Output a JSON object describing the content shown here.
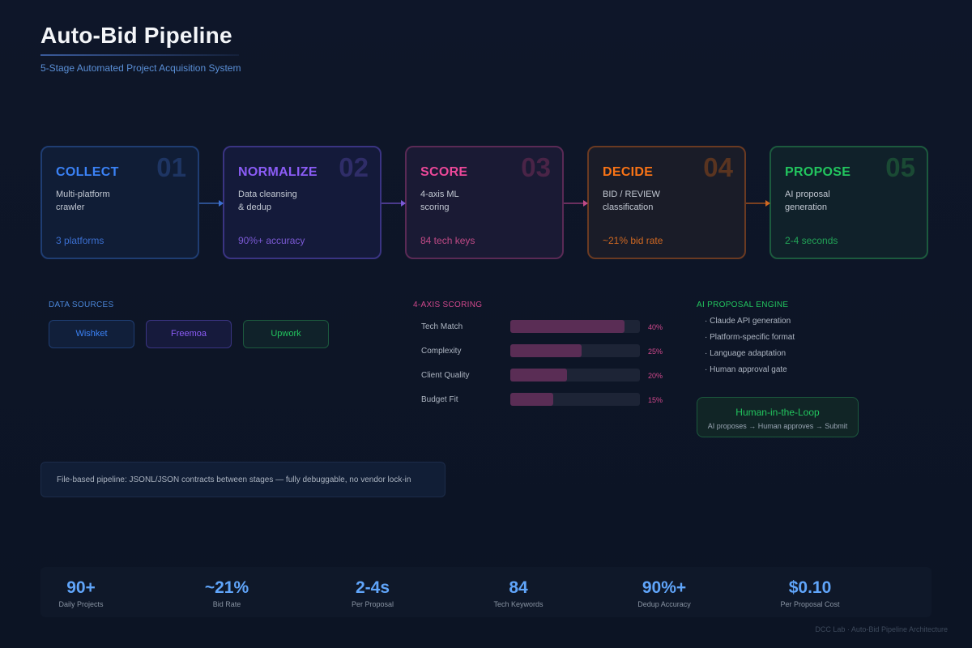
{
  "header": {
    "title": "Auto-Bid Pipeline",
    "subtitle": "5-Stage Automated Project Acquisition System"
  },
  "stages": [
    {
      "num": "01",
      "name": "COLLECT",
      "desc_line1": "Multi-platform",
      "desc_line2": "crawler",
      "metric": "3 platforms",
      "color": "#3b82f6"
    },
    {
      "num": "02",
      "name": "NORMALIZE",
      "desc_line1": "Data cleansing",
      "desc_line2": "& dedup",
      "metric": "90%+ accuracy",
      "color": "#8b5cf6"
    },
    {
      "num": "03",
      "name": "SCORE",
      "desc_line1": "4-axis ML",
      "desc_line2": "scoring",
      "metric": "84 tech keys",
      "color": "#ec4899"
    },
    {
      "num": "04",
      "name": "DECIDE",
      "desc_line1": "BID / REVIEW",
      "desc_line2": "classification",
      "metric": "~21% bid rate",
      "color": "#f97316"
    },
    {
      "num": "05",
      "name": "PROPOSE",
      "desc_line1": "AI proposal",
      "desc_line2": "generation",
      "metric": "2-4 seconds",
      "color": "#22c55e"
    }
  ],
  "data_sources": {
    "heading": "DATA SOURCES",
    "items": [
      {
        "label": "Wishket",
        "color": "#3b82f6"
      },
      {
        "label": "Freemoa",
        "color": "#8b5cf6"
      },
      {
        "label": "Upwork",
        "color": "#22c55e"
      }
    ]
  },
  "scoring": {
    "heading": "4-AXIS SCORING",
    "axes": [
      {
        "label": "Tech Match",
        "weight": 40,
        "weight_label": "40%"
      },
      {
        "label": "Complexity",
        "weight": 25,
        "weight_label": "25%"
      },
      {
        "label": "Client Quality",
        "weight": 20,
        "weight_label": "20%"
      },
      {
        "label": "Budget Fit",
        "weight": 15,
        "weight_label": "15%"
      }
    ]
  },
  "proposal_engine": {
    "heading": "AI PROPOSAL ENGINE",
    "bullets": [
      "· Claude API generation",
      "· Platform-specific format",
      "· Language adaptation",
      "· Human approval gate"
    ],
    "hitl_title": "Human-in-the-Loop",
    "hitl_subtitle": "AI proposes → Human approves → Submit"
  },
  "note": "File-based pipeline: JSONL/JSON contracts between stages — fully debuggable, no vendor lock-in",
  "stats": [
    {
      "value": "90+",
      "label": "Daily Projects"
    },
    {
      "value": "~21%",
      "label": "Bid Rate"
    },
    {
      "value": "2-4s",
      "label": "Per Proposal"
    },
    {
      "value": "84",
      "label": "Tech Keywords"
    },
    {
      "value": "90%+",
      "label": "Dedup Accuracy"
    },
    {
      "value": "$0.10",
      "label": "Per Proposal Cost"
    }
  ],
  "footer": "DCC Lab · Auto-Bid Pipeline Architecture"
}
